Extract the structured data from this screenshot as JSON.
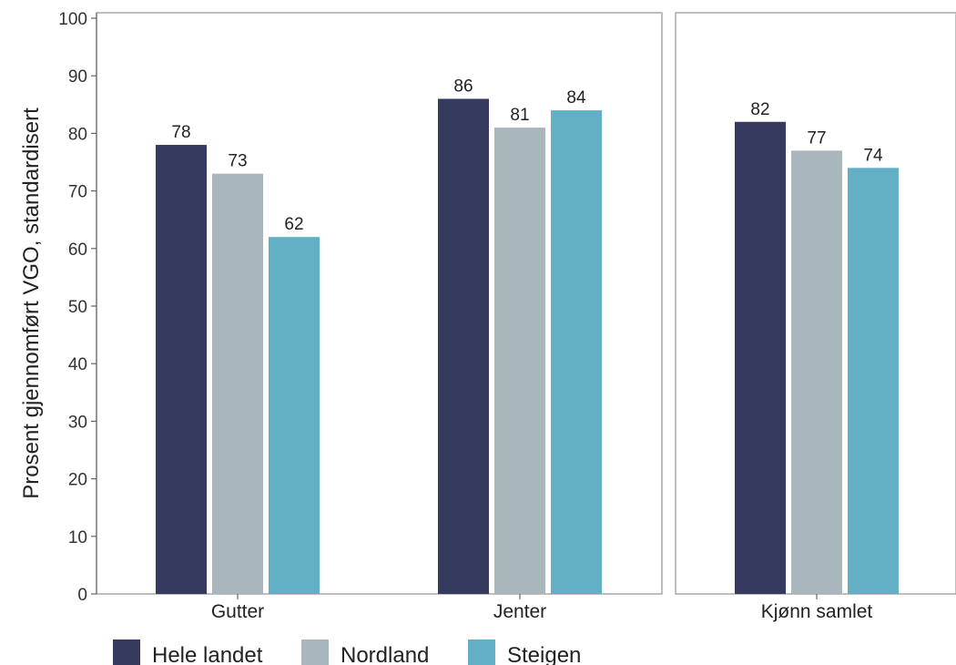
{
  "chart_data": {
    "type": "bar",
    "ylabel": "Prosent gjennomført VGO, standardisert",
    "ylim": [
      0,
      100
    ],
    "yticks": [
      0,
      10,
      20,
      30,
      40,
      50,
      60,
      70,
      80,
      90,
      100
    ],
    "grid": false,
    "legend_position": "bottom-left",
    "panels": [
      {
        "categories": [
          "Gutter",
          "Jenter"
        ]
      },
      {
        "categories": [
          "Kjønn samlet"
        ]
      }
    ],
    "categories": [
      "Gutter",
      "Jenter",
      "Kjønn samlet"
    ],
    "series": [
      {
        "name": "Hele landet",
        "color": "#363a5e",
        "values": [
          78,
          86,
          82
        ]
      },
      {
        "name": "Nordland",
        "color": "#a9b7bd",
        "values": [
          73,
          81,
          77
        ]
      },
      {
        "name": "Steigen",
        "color": "#62afc6",
        "values": [
          62,
          84,
          74
        ]
      }
    ],
    "value_labels": [
      [
        "78",
        "86",
        "82"
      ],
      [
        "73",
        "81",
        "77"
      ],
      [
        "62",
        "84",
        "74"
      ]
    ]
  }
}
